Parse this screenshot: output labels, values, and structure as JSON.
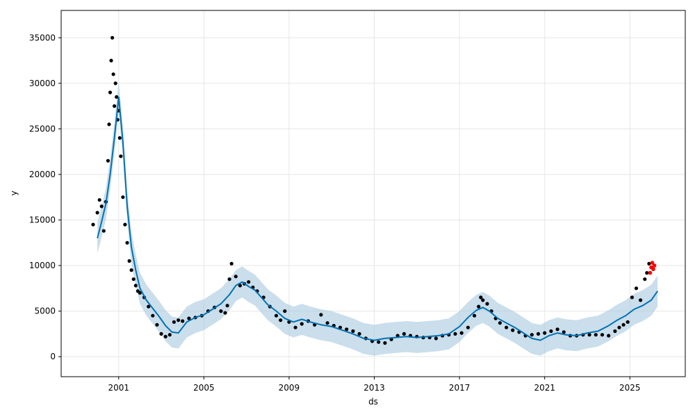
{
  "chart_data": {
    "type": "line",
    "xlabel": "ds",
    "ylabel": "y",
    "xlim": [
      1998.3,
      2027.6
    ],
    "ylim": [
      -2200,
      38000
    ],
    "grid": true,
    "x_ticks": [
      {
        "value": 2001,
        "label": "2001"
      },
      {
        "value": 2005,
        "label": "2005"
      },
      {
        "value": 2009,
        "label": "2009"
      },
      {
        "value": 2013,
        "label": "2013"
      },
      {
        "value": 2017,
        "label": "2017"
      },
      {
        "value": 2021,
        "label": "2021"
      },
      {
        "value": 2025,
        "label": "2025"
      }
    ],
    "y_ticks": [
      {
        "value": 0,
        "label": "0"
      },
      {
        "value": 5000,
        "label": "5000"
      },
      {
        "value": 10000,
        "label": "10000"
      },
      {
        "value": 15000,
        "label": "15000"
      },
      {
        "value": 20000,
        "label": "20000"
      },
      {
        "value": 25000,
        "label": "25000"
      },
      {
        "value": 30000,
        "label": "30000"
      },
      {
        "value": 35000,
        "label": "35000"
      }
    ],
    "colors": {
      "forecast": "#0072B2",
      "interval": "#a6c8e0",
      "actual": "#000000",
      "highlight": "#ff0000",
      "grid": "#e6e6e6"
    },
    "series": [
      {
        "role": "forecast",
        "x": [
          2000.0,
          2000.2,
          2000.4,
          2000.6,
          2000.8,
          2001.0,
          2001.2,
          2001.4,
          2001.6,
          2001.8,
          2002.0,
          2002.3,
          2002.6,
          2002.9,
          2003.2,
          2003.5,
          2003.8,
          2004.2,
          2004.6,
          2005.0,
          2005.4,
          2005.8,
          2006.2,
          2006.5,
          2006.8,
          2007.1,
          2007.4,
          2007.7,
          2008.0,
          2008.4,
          2008.8,
          2009.2,
          2009.6,
          2010.0,
          2010.5,
          2011.0,
          2011.5,
          2012.0,
          2012.5,
          2013.0,
          2013.5,
          2014.0,
          2014.5,
          2015.0,
          2015.5,
          2016.0,
          2016.5,
          2017.0,
          2017.4,
          2017.8,
          2018.1,
          2018.4,
          2018.8,
          2019.2,
          2019.6,
          2020.0,
          2020.4,
          2020.8,
          2021.2,
          2021.6,
          2022.0,
          2022.5,
          2023.0,
          2023.5,
          2024.0,
          2024.4,
          2024.8,
          2025.2,
          2025.6,
          2026.0,
          2026.3
        ],
        "y": [
          13000,
          14800,
          16800,
          20000,
          24000,
          28500,
          23500,
          16500,
          12000,
          9500,
          7500,
          6200,
          5300,
          4400,
          3400,
          2700,
          2600,
          3800,
          4300,
          4600,
          5200,
          5800,
          6800,
          7800,
          8200,
          7700,
          7300,
          6500,
          5700,
          5000,
          4200,
          3800,
          4100,
          3800,
          3500,
          3300,
          2900,
          2500,
          2000,
          1800,
          2000,
          2100,
          2200,
          2100,
          2200,
          2300,
          2500,
          3300,
          4300,
          5100,
          5400,
          5000,
          4200,
          3700,
          3200,
          2600,
          2000,
          1800,
          2300,
          2600,
          2400,
          2300,
          2600,
          2800,
          3400,
          4000,
          4500,
          5200,
          5600,
          6200,
          7200
        ]
      },
      {
        "role": "interval",
        "x": [
          2000.0,
          2000.2,
          2000.4,
          2000.6,
          2000.8,
          2001.0,
          2001.2,
          2001.4,
          2001.6,
          2001.8,
          2002.0,
          2002.3,
          2002.6,
          2002.9,
          2003.2,
          2003.5,
          2003.8,
          2004.2,
          2004.6,
          2005.0,
          2005.4,
          2005.8,
          2006.2,
          2006.5,
          2006.8,
          2007.1,
          2007.4,
          2007.7,
          2008.0,
          2008.4,
          2008.8,
          2009.2,
          2009.6,
          2010.0,
          2010.5,
          2011.0,
          2011.5,
          2012.0,
          2012.5,
          2013.0,
          2013.5,
          2014.0,
          2014.5,
          2015.0,
          2015.5,
          2016.0,
          2016.5,
          2017.0,
          2017.4,
          2017.8,
          2018.1,
          2018.4,
          2018.8,
          2019.2,
          2019.6,
          2020.0,
          2020.4,
          2020.8,
          2021.2,
          2021.6,
          2022.0,
          2022.5,
          2023.0,
          2023.5,
          2024.0,
          2024.4,
          2024.8,
          2025.2,
          2025.6,
          2026.0,
          2026.3
        ],
        "lower": [
          11300,
          13100,
          15100,
          18300,
          22300,
          26800,
          21800,
          14800,
          10300,
          7800,
          5800,
          4500,
          3600,
          2700,
          1700,
          1000,
          900,
          2100,
          2600,
          2900,
          3500,
          4100,
          5100,
          6100,
          6500,
          6000,
          5600,
          4800,
          4000,
          3300,
          2500,
          2100,
          2400,
          2100,
          1800,
          1600,
          1200,
          800,
          300,
          100,
          300,
          400,
          500,
          400,
          500,
          600,
          800,
          1600,
          2600,
          3400,
          3700,
          3300,
          2500,
          2000,
          1500,
          900,
          300,
          100,
          600,
          900,
          700,
          600,
          900,
          1100,
          1700,
          2300,
          2800,
          3500,
          3900,
          4500,
          5500
        ],
        "upper": [
          14700,
          16500,
          18500,
          21700,
          25700,
          30200,
          25200,
          18200,
          13700,
          11200,
          9200,
          7900,
          7000,
          6100,
          5100,
          4400,
          4300,
          5500,
          6000,
          6300,
          6900,
          7500,
          8500,
          9500,
          9900,
          9400,
          9000,
          8200,
          7400,
          6700,
          5900,
          5500,
          5800,
          5500,
          5200,
          5000,
          4600,
          4200,
          3700,
          3500,
          3700,
          3800,
          3900,
          3800,
          3900,
          4000,
          4200,
          5000,
          6000,
          6800,
          7100,
          6700,
          5900,
          5400,
          4900,
          4300,
          3700,
          3500,
          4000,
          4300,
          4100,
          4000,
          4300,
          4500,
          5100,
          5700,
          6200,
          6900,
          7300,
          7900,
          8900
        ]
      },
      {
        "role": "actual",
        "x": [
          1999.8,
          2000.0,
          2000.1,
          2000.2,
          2000.3,
          2000.4,
          2000.5,
          2000.55,
          2000.6,
          2000.65,
          2000.7,
          2000.75,
          2000.8,
          2000.85,
          2000.9,
          2000.95,
          2001.0,
          2001.05,
          2001.1,
          2001.2,
          2001.3,
          2001.4,
          2001.5,
          2001.6,
          2001.7,
          2001.8,
          2001.9,
          2002.0,
          2002.2,
          2002.4,
          2002.6,
          2002.8,
          2003.0,
          2003.2,
          2003.4,
          2003.6,
          2003.8,
          2004.0,
          2004.3,
          2004.6,
          2004.9,
          2005.2,
          2005.5,
          2005.8,
          2006.0,
          2006.1,
          2006.2,
          2006.3,
          2006.5,
          2006.7,
          2006.9,
          2007.1,
          2007.3,
          2007.5,
          2007.8,
          2008.1,
          2008.4,
          2008.6,
          2008.8,
          2009.0,
          2009.3,
          2009.6,
          2009.9,
          2010.2,
          2010.5,
          2010.8,
          2011.1,
          2011.4,
          2011.7,
          2012.0,
          2012.3,
          2012.6,
          2012.9,
          2013.2,
          2013.5,
          2013.8,
          2014.1,
          2014.4,
          2014.7,
          2015.0,
          2015.3,
          2015.6,
          2015.9,
          2016.2,
          2016.5,
          2016.8,
          2017.1,
          2017.4,
          2017.7,
          2017.9,
          2018.0,
          2018.1,
          2018.3,
          2018.5,
          2018.7,
          2018.9,
          2019.2,
          2019.5,
          2019.8,
          2020.1,
          2020.4,
          2020.7,
          2021.0,
          2021.3,
          2021.6,
          2021.9,
          2022.2,
          2022.5,
          2022.8,
          2023.1,
          2023.4,
          2023.7,
          2024.0,
          2024.3,
          2024.5,
          2024.7,
          2024.9,
          2025.1,
          2025.3,
          2025.5,
          2025.7,
          2025.8,
          2025.9,
          2026.0
        ],
        "y": [
          14500,
          15800,
          17200,
          16500,
          13800,
          17000,
          21500,
          25500,
          29000,
          32500,
          35000,
          31000,
          27500,
          30000,
          28500,
          26000,
          27000,
          24000,
          22000,
          17500,
          14500,
          12500,
          10500,
          9500,
          8500,
          7800,
          7200,
          7000,
          6500,
          5500,
          4500,
          3500,
          2500,
          2200,
          2400,
          3800,
          4000,
          3900,
          4200,
          4300,
          4500,
          5000,
          5400,
          5000,
          4800,
          5600,
          8500,
          10200,
          8800,
          7800,
          8000,
          8200,
          7600,
          7200,
          6500,
          5500,
          4500,
          4000,
          5000,
          3800,
          3200,
          3600,
          3900,
          3500,
          4600,
          3700,
          3400,
          3200,
          3000,
          2800,
          2500,
          2000,
          1700,
          1600,
          1500,
          1900,
          2300,
          2500,
          2300,
          2200,
          2100,
          2100,
          2000,
          2300,
          2400,
          2500,
          2600,
          3200,
          4500,
          5500,
          6500,
          6200,
          5800,
          5000,
          4200,
          3700,
          3200,
          2900,
          2700,
          2300,
          2400,
          2500,
          2600,
          2800,
          3000,
          2700,
          2300,
          2300,
          2400,
          2400,
          2400,
          2400,
          2300,
          2800,
          3200,
          3500,
          3800,
          6500,
          7500,
          6200,
          8500,
          9200,
          10200,
          9800
        ]
      },
      {
        "role": "highlight",
        "x": [
          2025.95,
          2026.0,
          2026.05,
          2026.1,
          2026.15
        ],
        "y": [
          9200,
          9800,
          10300,
          9600,
          10000
        ]
      }
    ]
  }
}
